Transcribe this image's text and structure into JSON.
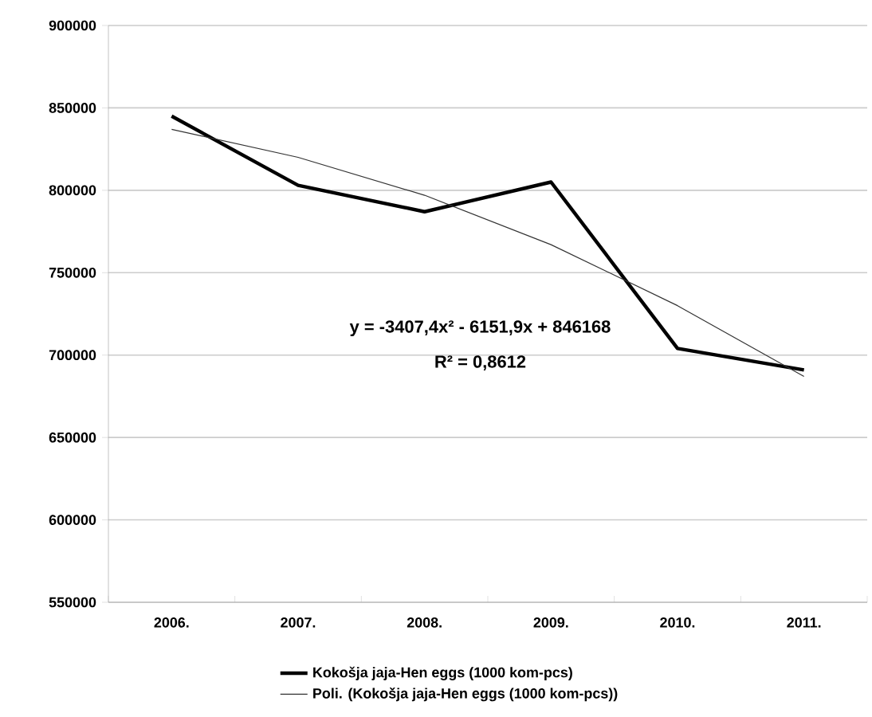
{
  "chart_data": {
    "type": "line",
    "categories": [
      "2006.",
      "2007.",
      "2008.",
      "2009.",
      "2010.",
      "2011."
    ],
    "series": [
      {
        "name": "Kokošja jaja-Hen eggs (1000 kom-pcs)",
        "color": "#000000",
        "values": [
          845000,
          803000,
          787000,
          805000,
          704000,
          691000
        ]
      },
      {
        "name": "Poli. (Kokošja jaja-Hen eggs (1000 kom-pcs))",
        "color": "#333333",
        "values": [
          837000,
          820000,
          797000,
          767000,
          730000,
          687000
        ]
      }
    ],
    "ylim": [
      550000,
      900000
    ],
    "yticks": [
      550000,
      600000,
      650000,
      700000,
      750000,
      800000,
      850000,
      900000
    ],
    "grid": "y",
    "legend": "bottom",
    "marker": "none",
    "line_style": "solid",
    "annotations": [
      "y = -3407,4x² - 6151,9x + 846168",
      "R² = 0,8612"
    ]
  }
}
